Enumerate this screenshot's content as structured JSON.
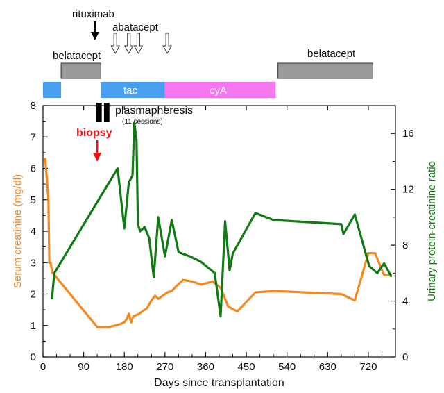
{
  "chart_data": {
    "type": "line",
    "xlabel": "Days since transplantation",
    "ylabel_left": "Serum creatinine (mg/dl)",
    "ylabel_right": "Urinary protein-creatinine ratio",
    "xlim": [
      0,
      780
    ],
    "ylim_left": [
      0,
      8
    ],
    "ylim_right": [
      0,
      18
    ],
    "x_ticks": [
      0,
      90,
      180,
      270,
      360,
      450,
      540,
      630,
      720
    ],
    "y_ticks_left": [
      0,
      1,
      2,
      3,
      4,
      5,
      6,
      7,
      8
    ],
    "y_ticks_right": [
      0,
      4,
      8,
      12,
      16
    ],
    "colors": {
      "creatinine": "#f5881f",
      "protein": "#127a12",
      "biopsy": "#ee1111",
      "tac": "#4a9ff0",
      "cya": "#f576ee",
      "belatacept": "#9a9a9a"
    },
    "series": [
      {
        "name": "Serum creatinine (mg/dl)",
        "axis": "left",
        "x": [
          5,
          12,
          14,
          17,
          20,
          120,
          145,
          160,
          172,
          180,
          185,
          190,
          195,
          200,
          210,
          220,
          230,
          240,
          248,
          255,
          265,
          275,
          285,
          295,
          310,
          330,
          350,
          375,
          393,
          410,
          430,
          470,
          510,
          660,
          690,
          720,
          735,
          755,
          770
        ],
        "y": [
          6.3,
          5.0,
          3.0,
          3.0,
          2.7,
          0.95,
          0.95,
          1.0,
          1.05,
          1.1,
          1.2,
          1.38,
          1.1,
          1.3,
          1.35,
          1.45,
          1.55,
          1.8,
          1.95,
          1.85,
          1.95,
          2.05,
          2.1,
          2.25,
          2.45,
          2.4,
          2.3,
          2.4,
          2.2,
          1.6,
          1.45,
          2.05,
          2.1,
          2.0,
          1.8,
          3.3,
          3.3,
          2.6,
          2.6
        ]
      },
      {
        "name": "Urinary protein-creatinine ratio",
        "axis": "right",
        "x": [
          20,
          25,
          165,
          180,
          190,
          195,
          198,
          202,
          207,
          210,
          215,
          225,
          235,
          245,
          255,
          270,
          285,
          300,
          325,
          350,
          380,
          393,
          403,
          413,
          420,
          470,
          510,
          660,
          665,
          690,
          722,
          740,
          755,
          770
        ],
        "y": [
          4.2,
          6.0,
          13.5,
          9.2,
          12.5,
          12.8,
          13.0,
          16.8,
          15.5,
          9.5,
          9.0,
          9.3,
          8.5,
          5.7,
          10.0,
          7.2,
          9.8,
          7.5,
          7.2,
          6.8,
          6.0,
          2.9,
          9.7,
          6.2,
          7.4,
          10.3,
          9.8,
          9.5,
          8.8,
          10.2,
          6.5,
          6.0,
          6.7,
          5.8
        ]
      }
    ],
    "annotations": {
      "rituximab": "rituximab",
      "abatacept": "abatacept",
      "belatacept_left": "belatacept",
      "belatacept_right": "belatacept",
      "tac": "tac",
      "cya": "cyA",
      "plasmapheresis": "plasmapheresis",
      "plasmapheresis_sessions": "(11 sessions)",
      "biopsy": "biopsy"
    },
    "timeline": {
      "rituximab_day": 115,
      "abatacept_days": [
        160,
        190,
        211,
        275
      ],
      "biopsy_day": 120,
      "plasmapheresis_days": [
        [
          118,
          130
        ],
        [
          135,
          147
        ]
      ],
      "belatacept_periods": [
        [
          40,
          128
        ],
        [
          520,
          730
        ]
      ],
      "tac_periods": [
        [
          0,
          40
        ],
        [
          128,
          270
        ]
      ],
      "cya_periods": [
        [
          270,
          515
        ]
      ]
    }
  }
}
